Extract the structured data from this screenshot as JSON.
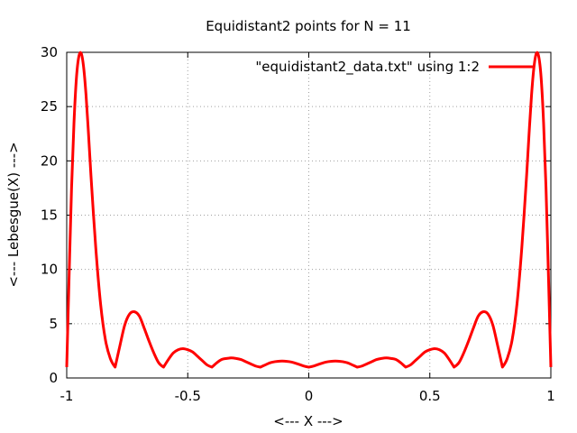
{
  "chart_data": {
    "type": "line",
    "title": "Equidistant2 points for N = 11",
    "xlabel": "<--- X --->",
    "ylabel": "<--- Lebesgue(X) --->",
    "xlim": [
      -1,
      1
    ],
    "ylim": [
      0,
      30
    ],
    "x_ticks": [
      -1,
      -0.5,
      0,
      0.5,
      1
    ],
    "x_tick_labels": [
      "-1",
      "-0.5",
      "0",
      "0.5",
      "1"
    ],
    "y_ticks": [
      0,
      5,
      10,
      15,
      20,
      25,
      30
    ],
    "y_tick_labels": [
      "0",
      "5",
      "10",
      "15",
      "20",
      "25",
      "30"
    ],
    "grid": true,
    "legend_position": "top-right",
    "series": [
      {
        "name": "\"equidistant2_data.txt\" using 1:2",
        "color": "#ff0000",
        "x": [
          -1.0,
          -0.99,
          -0.98,
          -0.97,
          -0.96,
          -0.95,
          -0.94,
          -0.93,
          -0.92,
          -0.91,
          -0.9,
          -0.88,
          -0.86,
          -0.84,
          -0.82,
          -0.8,
          -0.78,
          -0.76,
          -0.74,
          -0.72,
          -0.7,
          -0.68,
          -0.66,
          -0.64,
          -0.62,
          -0.6,
          -0.58,
          -0.56,
          -0.54,
          -0.52,
          -0.5,
          -0.48,
          -0.46,
          -0.44,
          -0.42,
          -0.4,
          -0.38,
          -0.36,
          -0.34,
          -0.32,
          -0.3,
          -0.28,
          -0.26,
          -0.24,
          -0.22,
          -0.2,
          -0.18,
          -0.16,
          -0.14,
          -0.12,
          -0.1,
          -0.08,
          -0.06,
          -0.04,
          -0.02,
          0.0,
          0.02,
          0.04,
          0.06,
          0.08,
          0.1,
          0.12,
          0.14,
          0.16,
          0.18,
          0.2,
          0.22,
          0.24,
          0.26,
          0.28,
          0.3,
          0.32,
          0.34,
          0.36,
          0.38,
          0.4,
          0.42,
          0.44,
          0.46,
          0.48,
          0.5,
          0.52,
          0.54,
          0.56,
          0.58,
          0.6,
          0.62,
          0.64,
          0.66,
          0.68,
          0.7,
          0.72,
          0.74,
          0.76,
          0.78,
          0.8,
          0.82,
          0.84,
          0.86,
          0.88,
          0.9,
          0.91,
          0.92,
          0.93,
          0.94,
          0.95,
          0.96,
          0.97,
          0.98,
          0.99,
          1.0
        ],
        "y": [
          1.0,
          9.5,
          17.5,
          23.5,
          27.6,
          29.6,
          29.9,
          28.6,
          26.0,
          22.5,
          18.7,
          12.0,
          6.8,
          3.5,
          1.8,
          1.0,
          3.0,
          4.9,
          5.9,
          6.1,
          5.7,
          4.6,
          3.4,
          2.3,
          1.4,
          1.0,
          1.7,
          2.3,
          2.6,
          2.7,
          2.6,
          2.4,
          2.0,
          1.6,
          1.2,
          1.0,
          1.4,
          1.7,
          1.8,
          1.85,
          1.8,
          1.7,
          1.5,
          1.3,
          1.1,
          1.0,
          1.2,
          1.4,
          1.5,
          1.55,
          1.55,
          1.5,
          1.4,
          1.25,
          1.1,
          1.0,
          1.1,
          1.25,
          1.4,
          1.5,
          1.55,
          1.55,
          1.5,
          1.4,
          1.2,
          1.0,
          1.1,
          1.3,
          1.5,
          1.7,
          1.8,
          1.85,
          1.8,
          1.7,
          1.4,
          1.0,
          1.2,
          1.6,
          2.0,
          2.4,
          2.6,
          2.7,
          2.6,
          2.3,
          1.7,
          1.0,
          1.4,
          2.3,
          3.4,
          4.6,
          5.7,
          6.1,
          5.9,
          4.9,
          3.0,
          1.0,
          1.8,
          3.5,
          6.8,
          12.0,
          18.7,
          22.5,
          26.0,
          28.6,
          29.9,
          29.6,
          27.6,
          23.5,
          17.5,
          9.5,
          1.0
        ]
      }
    ]
  }
}
